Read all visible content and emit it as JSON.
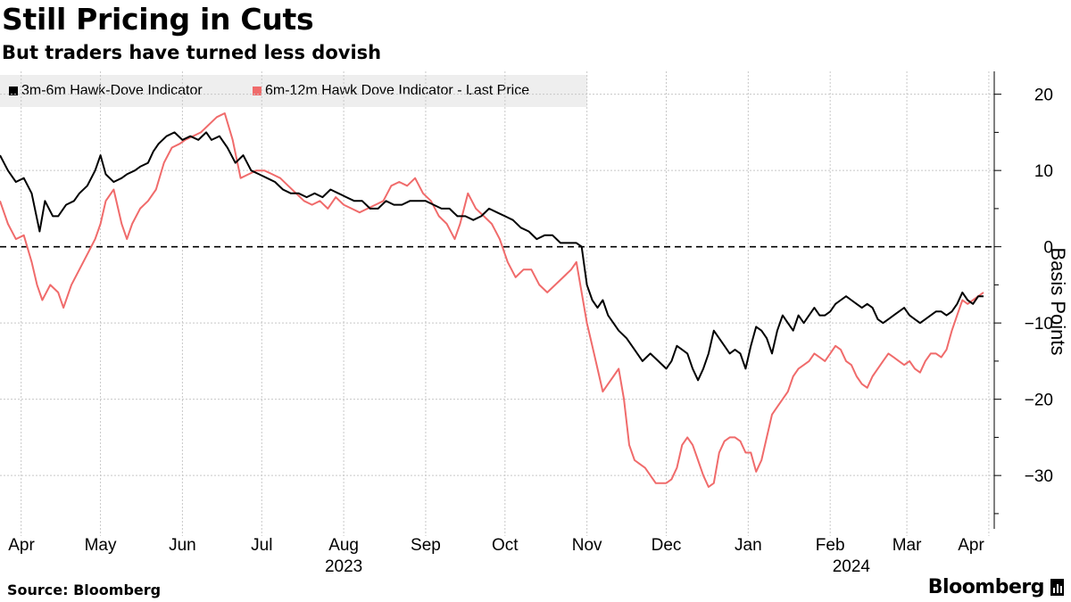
{
  "header": {
    "title": "Still Pricing in Cuts",
    "subtitle": "But traders have turned less dovish"
  },
  "footer": {
    "source": "Source: Bloomberg",
    "brand": "Bloomberg"
  },
  "colors": {
    "series1": "#000000",
    "series2": "#f06b6b",
    "grid": "#c8c8c8",
    "legend_bg": "#eeeeee"
  },
  "chart_data": {
    "type": "line",
    "title": "Still Pricing in Cuts",
    "subtitle": "But traders have turned less dovish",
    "ylabel": "Basis Points",
    "ylim": [
      -37,
      23
    ],
    "yticks": [
      20,
      10,
      0,
      -10,
      -20,
      -30
    ],
    "xlim": [
      0,
      372
    ],
    "x_unit": "days since 2023-03-24",
    "xticks": [
      {
        "label": "Apr",
        "day": 8
      },
      {
        "label": "May",
        "day": 38
      },
      {
        "label": "Jun",
        "day": 69
      },
      {
        "label": "Jul",
        "day": 99
      },
      {
        "label": "Aug",
        "day": 130
      },
      {
        "label": "Sep",
        "day": 161
      },
      {
        "label": "Oct",
        "day": 191
      },
      {
        "label": "Nov",
        "day": 222
      },
      {
        "label": "Dec",
        "day": 252
      },
      {
        "label": "Jan",
        "day": 283
      },
      {
        "label": "Feb",
        "day": 314
      },
      {
        "label": "Mar",
        "day": 343
      },
      {
        "label": "Apr",
        "day": 374
      }
    ],
    "year_labels": [
      {
        "label": "2023",
        "day": 130
      },
      {
        "label": "2024",
        "day": 322
      }
    ],
    "reference_line": {
      "value": 0,
      "style": "dashed"
    },
    "legend": "top-left",
    "series": [
      {
        "name": "3m-6m Hawk-Dove Indicator",
        "color": "#000000",
        "points": [
          [
            0,
            12
          ],
          [
            3,
            10
          ],
          [
            6,
            8.5
          ],
          [
            9,
            9
          ],
          [
            12,
            7
          ],
          [
            15,
            2
          ],
          [
            17,
            6
          ],
          [
            20,
            4
          ],
          [
            22,
            4
          ],
          [
            25,
            5.5
          ],
          [
            28,
            6
          ],
          [
            30,
            7
          ],
          [
            33,
            8
          ],
          [
            36,
            10
          ],
          [
            38,
            12
          ],
          [
            40,
            9.5
          ],
          [
            43,
            8.5
          ],
          [
            46,
            9
          ],
          [
            48,
            9.5
          ],
          [
            51,
            10
          ],
          [
            53,
            10.5
          ],
          [
            56,
            11
          ],
          [
            58,
            12.5
          ],
          [
            60,
            13.5
          ],
          [
            63,
            14.5
          ],
          [
            66,
            15
          ],
          [
            69,
            14
          ],
          [
            72,
            14.5
          ],
          [
            75,
            14
          ],
          [
            78,
            15
          ],
          [
            80,
            14
          ],
          [
            83,
            14.5
          ],
          [
            86,
            13
          ],
          [
            89,
            11
          ],
          [
            92,
            12
          ],
          [
            95,
            10
          ],
          [
            98,
            9.5
          ],
          [
            101,
            9
          ],
          [
            104,
            8.5
          ],
          [
            107,
            7.5
          ],
          [
            110,
            7
          ],
          [
            113,
            7
          ],
          [
            116,
            6.5
          ],
          [
            119,
            7
          ],
          [
            122,
            6.5
          ],
          [
            125,
            7.5
          ],
          [
            128,
            7
          ],
          [
            131,
            6.5
          ],
          [
            134,
            6
          ],
          [
            137,
            6
          ],
          [
            140,
            5
          ],
          [
            143,
            5
          ],
          [
            146,
            6
          ],
          [
            149,
            5.5
          ],
          [
            152,
            5.5
          ],
          [
            155,
            6
          ],
          [
            158,
            6
          ],
          [
            161,
            6
          ],
          [
            164,
            5.5
          ],
          [
            167,
            5
          ],
          [
            170,
            5
          ],
          [
            173,
            4
          ],
          [
            176,
            4
          ],
          [
            179,
            3.5
          ],
          [
            182,
            4
          ],
          [
            185,
            5
          ],
          [
            188,
            4.5
          ],
          [
            191,
            4
          ],
          [
            194,
            3.5
          ],
          [
            197,
            2.5
          ],
          [
            200,
            2
          ],
          [
            203,
            1
          ],
          [
            206,
            1.5
          ],
          [
            209,
            1.5
          ],
          [
            212,
            0.5
          ],
          [
            215,
            0.5
          ],
          [
            218,
            0.5
          ],
          [
            220,
            0
          ],
          [
            222,
            -5
          ],
          [
            224,
            -7
          ],
          [
            226,
            -8
          ],
          [
            228,
            -7
          ],
          [
            230,
            -9
          ],
          [
            232,
            -10
          ],
          [
            234,
            -11
          ],
          [
            237,
            -12
          ],
          [
            240,
            -13.5
          ],
          [
            243,
            -15
          ],
          [
            246,
            -14
          ],
          [
            249,
            -15
          ],
          [
            252,
            -16
          ],
          [
            254,
            -15
          ],
          [
            256,
            -13
          ],
          [
            258,
            -13.5
          ],
          [
            260,
            -14
          ],
          [
            262,
            -16
          ],
          [
            264,
            -17.5
          ],
          [
            266,
            -16
          ],
          [
            268,
            -14
          ],
          [
            270,
            -11
          ],
          [
            272,
            -12
          ],
          [
            274,
            -13
          ],
          [
            276,
            -14
          ],
          [
            278,
            -13.5
          ],
          [
            280,
            -14
          ],
          [
            282,
            -16
          ],
          [
            284,
            -13
          ],
          [
            286,
            -10.5
          ],
          [
            288,
            -11
          ],
          [
            290,
            -12
          ],
          [
            292,
            -14
          ],
          [
            294,
            -11
          ],
          [
            296,
            -9
          ],
          [
            298,
            -10
          ],
          [
            300,
            -11
          ],
          [
            302,
            -9
          ],
          [
            304,
            -10
          ],
          [
            306,
            -9
          ],
          [
            308,
            -8
          ],
          [
            310,
            -9
          ],
          [
            312,
            -9
          ],
          [
            314,
            -8.5
          ],
          [
            316,
            -7.5
          ],
          [
            318,
            -7
          ],
          [
            320,
            -6.5
          ],
          [
            322,
            -7
          ],
          [
            324,
            -7.5
          ],
          [
            326,
            -8
          ],
          [
            328,
            -7.5
          ],
          [
            330,
            -8
          ],
          [
            332,
            -9.5
          ],
          [
            334,
            -10
          ],
          [
            336,
            -9.5
          ],
          [
            338,
            -9
          ],
          [
            340,
            -8.5
          ],
          [
            342,
            -8
          ],
          [
            344,
            -9
          ],
          [
            346,
            -9.5
          ],
          [
            348,
            -10
          ],
          [
            350,
            -9.5
          ],
          [
            352,
            -9
          ],
          [
            354,
            -8.5
          ],
          [
            356,
            -8.5
          ],
          [
            358,
            -9
          ],
          [
            360,
            -8.5
          ],
          [
            362,
            -7.5
          ],
          [
            364,
            -6
          ],
          [
            366,
            -7
          ],
          [
            368,
            -7.5
          ],
          [
            370,
            -6.5
          ],
          [
            372,
            -6.5
          ]
        ]
      },
      {
        "name": "6m-12m Hawk Dove Indicator - Last Price",
        "color": "#f06b6b",
        "points": [
          [
            0,
            6
          ],
          [
            3,
            3
          ],
          [
            6,
            1
          ],
          [
            9,
            1.5
          ],
          [
            12,
            -2
          ],
          [
            14,
            -5
          ],
          [
            16,
            -7
          ],
          [
            19,
            -5
          ],
          [
            22,
            -6
          ],
          [
            24,
            -8
          ],
          [
            27,
            -5
          ],
          [
            30,
            -3
          ],
          [
            33,
            -1
          ],
          [
            36,
            1
          ],
          [
            38,
            3
          ],
          [
            40,
            6
          ],
          [
            43,
            7.5
          ],
          [
            46,
            3
          ],
          [
            48,
            1
          ],
          [
            50,
            3
          ],
          [
            53,
            5
          ],
          [
            56,
            6
          ],
          [
            59,
            7.5
          ],
          [
            62,
            11
          ],
          [
            65,
            13
          ],
          [
            68,
            13.5
          ],
          [
            70,
            14
          ],
          [
            73,
            14.5
          ],
          [
            76,
            15
          ],
          [
            79,
            16
          ],
          [
            82,
            17
          ],
          [
            85,
            17.5
          ],
          [
            88,
            14
          ],
          [
            91,
            9
          ],
          [
            94,
            9.5
          ],
          [
            97,
            10
          ],
          [
            100,
            10
          ],
          [
            103,
            9.5
          ],
          [
            106,
            9
          ],
          [
            109,
            8
          ],
          [
            112,
            7
          ],
          [
            115,
            6
          ],
          [
            118,
            5.5
          ],
          [
            121,
            6
          ],
          [
            124,
            5
          ],
          [
            127,
            6.5
          ],
          [
            130,
            5.5
          ],
          [
            133,
            5
          ],
          [
            136,
            4.5
          ],
          [
            139,
            5
          ],
          [
            142,
            5.5
          ],
          [
            145,
            6
          ],
          [
            148,
            8
          ],
          [
            151,
            8.5
          ],
          [
            154,
            8
          ],
          [
            157,
            9
          ],
          [
            160,
            7
          ],
          [
            163,
            6
          ],
          [
            166,
            4
          ],
          [
            169,
            3
          ],
          [
            172,
            1
          ],
          [
            174,
            3
          ],
          [
            177,
            7
          ],
          [
            180,
            5
          ],
          [
            183,
            4
          ],
          [
            186,
            3
          ],
          [
            189,
            1
          ],
          [
            192,
            -2
          ],
          [
            195,
            -4
          ],
          [
            198,
            -3
          ],
          [
            201,
            -3
          ],
          [
            204,
            -5
          ],
          [
            207,
            -6
          ],
          [
            210,
            -5
          ],
          [
            213,
            -4
          ],
          [
            216,
            -3
          ],
          [
            218,
            -2
          ],
          [
            220,
            -6
          ],
          [
            222,
            -10
          ],
          [
            224,
            -13
          ],
          [
            226,
            -16
          ],
          [
            228,
            -19
          ],
          [
            230,
            -18
          ],
          [
            232,
            -17
          ],
          [
            234,
            -16
          ],
          [
            236,
            -20
          ],
          [
            238,
            -26
          ],
          [
            240,
            -28
          ],
          [
            242,
            -28.5
          ],
          [
            244,
            -29
          ],
          [
            246,
            -30
          ],
          [
            248,
            -31
          ],
          [
            250,
            -31
          ],
          [
            252,
            -31
          ],
          [
            254,
            -30.5
          ],
          [
            256,
            -29
          ],
          [
            258,
            -26
          ],
          [
            260,
            -25
          ],
          [
            262,
            -26
          ],
          [
            264,
            -28
          ],
          [
            266,
            -30
          ],
          [
            268,
            -31.5
          ],
          [
            270,
            -31
          ],
          [
            272,
            -27
          ],
          [
            274,
            -25.5
          ],
          [
            276,
            -25
          ],
          [
            278,
            -25
          ],
          [
            280,
            -25.5
          ],
          [
            282,
            -27
          ],
          [
            284,
            -27
          ],
          [
            286,
            -29.5
          ],
          [
            288,
            -28
          ],
          [
            290,
            -25
          ],
          [
            292,
            -22
          ],
          [
            294,
            -21
          ],
          [
            296,
            -20
          ],
          [
            298,
            -19
          ],
          [
            300,
            -17
          ],
          [
            302,
            -16
          ],
          [
            304,
            -15.5
          ],
          [
            306,
            -15
          ],
          [
            308,
            -14
          ],
          [
            310,
            -14.5
          ],
          [
            312,
            -15
          ],
          [
            314,
            -14
          ],
          [
            316,
            -13
          ],
          [
            318,
            -13.5
          ],
          [
            320,
            -15
          ],
          [
            322,
            -15.5
          ],
          [
            324,
            -17
          ],
          [
            326,
            -18
          ],
          [
            328,
            -18.5
          ],
          [
            330,
            -17
          ],
          [
            332,
            -16
          ],
          [
            334,
            -15
          ],
          [
            336,
            -14
          ],
          [
            338,
            -14.5
          ],
          [
            340,
            -15
          ],
          [
            342,
            -15.5
          ],
          [
            344,
            -15
          ],
          [
            346,
            -16
          ],
          [
            348,
            -16.5
          ],
          [
            350,
            -15
          ],
          [
            352,
            -14
          ],
          [
            354,
            -14
          ],
          [
            356,
            -14.5
          ],
          [
            358,
            -13.5
          ],
          [
            360,
            -11
          ],
          [
            362,
            -9
          ],
          [
            364,
            -7
          ],
          [
            366,
            -7.5
          ],
          [
            368,
            -7
          ],
          [
            370,
            -6.5
          ],
          [
            372,
            -6
          ]
        ]
      }
    ]
  }
}
